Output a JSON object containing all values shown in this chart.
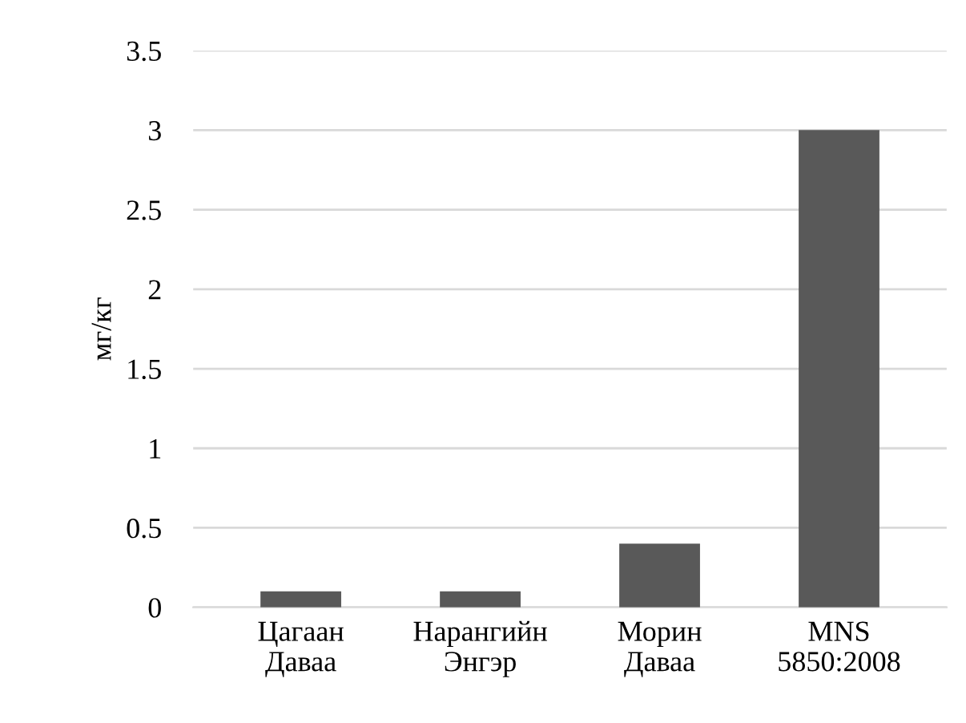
{
  "chart_data": {
    "type": "bar",
    "ylabel": "мг/кг",
    "categories": [
      "Цагаан\nДаваа",
      "Нарангийн\nЭнгэр",
      "Морин\nДаваа",
      "MNS\n5850:2008"
    ],
    "values": [
      0.1,
      0.1,
      0.4,
      3
    ],
    "color": "#595959",
    "ylim": [
      0,
      3.5
    ],
    "yticks": [
      0,
      0.5,
      1,
      1.5,
      2,
      2.5,
      3,
      3.5
    ],
    "grid": "y"
  }
}
